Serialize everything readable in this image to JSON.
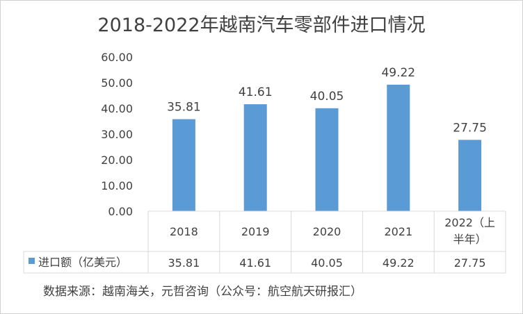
{
  "chart_data": {
    "type": "bar",
    "title": "2018-2022年越南汽车零部件进口情况",
    "categories": [
      "2018",
      "2019",
      "2020",
      "2021",
      "2022（上半年）"
    ],
    "category_lines": [
      [
        "2018"
      ],
      [
        "2019"
      ],
      [
        "2020"
      ],
      [
        "2021"
      ],
      [
        "2022（上",
        "半年）"
      ]
    ],
    "series": [
      {
        "name": "进口额（亿美元）",
        "values": [
          35.81,
          41.61,
          40.05,
          49.22,
          27.75
        ]
      }
    ],
    "data_labels": [
      "35.81",
      "41.61",
      "40.05",
      "49.22",
      "27.75"
    ],
    "table_values": [
      "35.81",
      "41.61",
      "40.05",
      "49.22",
      "27.75"
    ],
    "y_ticks": [
      "0.00",
      "10.00",
      "20.00",
      "30.00",
      "40.00",
      "50.00",
      "60.00"
    ],
    "ylim": [
      0,
      60
    ],
    "grid": false,
    "legend_placement": "data-table-left",
    "colors": {
      "bar": "#5B9BD5",
      "axis": "#d9d9d9",
      "text": "#404040"
    }
  },
  "source_note": "数据来源：越南海关，元哲咨询（公众号：航空航天研报汇）"
}
